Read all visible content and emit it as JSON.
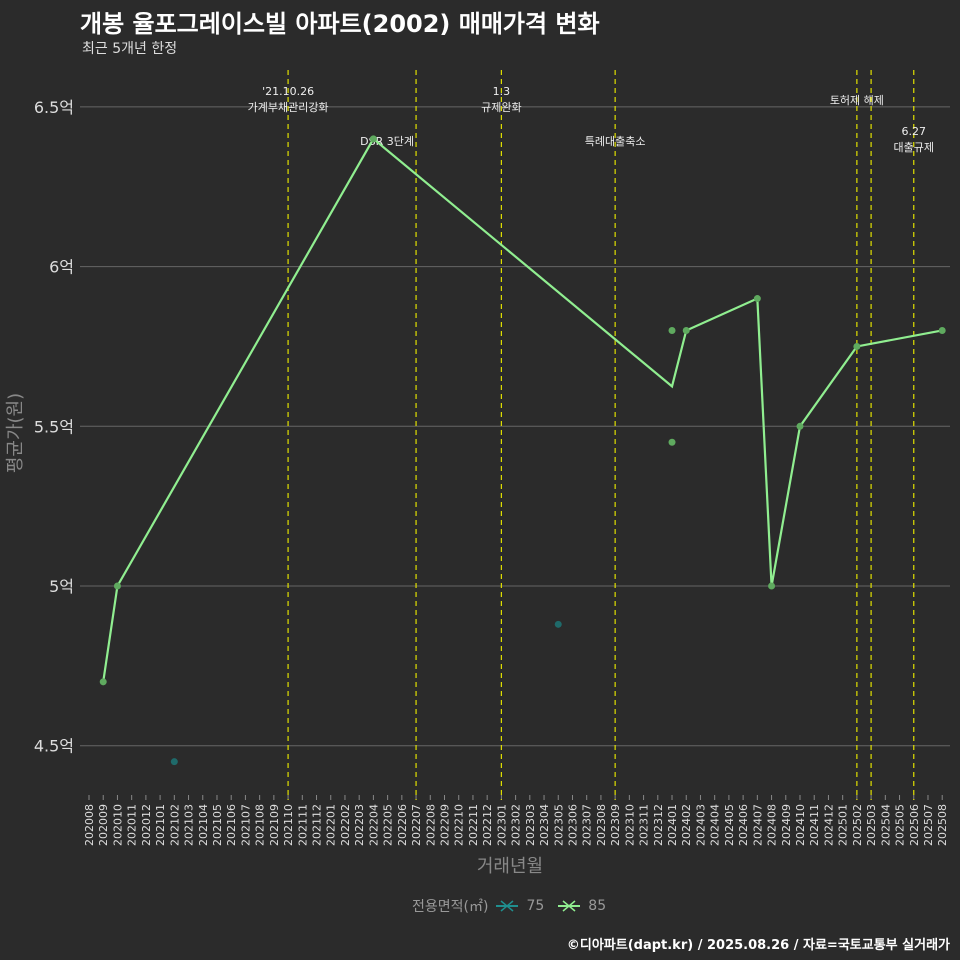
{
  "title": "개봉 율포그레이스빌 아파트(2002) 매매가격 변화",
  "subtitle": "최근 5개년 한정",
  "footer": "©디아파트(dapt.kr) / 2025.08.26 / 자료=국토교통부 실거래가",
  "chart_data": {
    "type": "line",
    "xlabel": "거래년월",
    "ylabel": "평균가(원)",
    "ylim": [
      4.35,
      6.6
    ],
    "yticks": [
      {
        "v": 4.5,
        "label": "4.5억"
      },
      {
        "v": 5,
        "label": "5억"
      },
      {
        "v": 5.5,
        "label": "5.5억"
      },
      {
        "v": 6,
        "label": "6억"
      },
      {
        "v": 6.5,
        "label": "6.5억"
      }
    ],
    "categories": [
      "202008",
      "202009",
      "202010",
      "202011",
      "202012",
      "202101",
      "202102",
      "202103",
      "202104",
      "202105",
      "202106",
      "202107",
      "202108",
      "202109",
      "202110",
      "202111",
      "202112",
      "202201",
      "202202",
      "202203",
      "202204",
      "202205",
      "202206",
      "202207",
      "202208",
      "202209",
      "202210",
      "202211",
      "202212",
      "202301",
      "202302",
      "202303",
      "202304",
      "202305",
      "202306",
      "202307",
      "202308",
      "202309",
      "202310",
      "202311",
      "202312",
      "202401",
      "202402",
      "202403",
      "202404",
      "202405",
      "202406",
      "202407",
      "202408",
      "202409",
      "202410",
      "202411",
      "202412",
      "202501",
      "202502",
      "202503",
      "202504",
      "202505",
      "202506",
      "202507",
      "202508"
    ],
    "legend_title": "전용면적(㎡)",
    "series": [
      {
        "name": "75",
        "color": "#1f6f6f",
        "line": [],
        "points": [
          [
            "202102",
            4.45
          ],
          [
            "202305",
            4.88
          ]
        ]
      },
      {
        "name": "85",
        "color": "#90ee90",
        "line": [
          [
            "202009",
            4.7
          ],
          [
            "202010",
            5.0
          ],
          [
            "202204",
            6.4
          ],
          [
            "202401",
            5.625
          ],
          [
            "202402",
            5.8
          ],
          [
            "202407",
            5.9
          ],
          [
            "202408",
            5.0
          ],
          [
            "202410",
            5.5
          ],
          [
            "202502",
            5.75
          ],
          [
            "202508",
            5.8
          ]
        ],
        "points": [
          [
            "202009",
            4.7
          ],
          [
            "202010",
            5.0
          ],
          [
            "202204",
            6.4
          ],
          [
            "202401",
            5.8
          ],
          [
            "202401",
            5.45
          ],
          [
            "202402",
            5.8
          ],
          [
            "202407",
            5.9
          ],
          [
            "202408",
            5.0
          ],
          [
            "202410",
            5.5
          ],
          [
            "202502",
            5.75
          ],
          [
            "202508",
            5.8
          ]
        ]
      }
    ],
    "events": [
      {
        "x": "202110",
        "label1": "'21.10.26",
        "label2": "가계부채관리강화",
        "row": 0
      },
      {
        "x": "202207",
        "label1": "",
        "label2": "DSR 3단계",
        "row": 1
      },
      {
        "x": "202301",
        "label1": "1.3",
        "label2": "규제완화",
        "row": 0
      },
      {
        "x": "202309",
        "label1": "",
        "label2": "특례대출축소",
        "row": 1
      },
      {
        "x": "202502",
        "label1": "",
        "label2": "토허제 해제",
        "row": 0
      },
      {
        "x": "202503",
        "label1": "",
        "label2": "",
        "row": 0
      },
      {
        "x": "202506",
        "label1": "6.27",
        "label2": "대출규제",
        "row": 1
      }
    ]
  }
}
